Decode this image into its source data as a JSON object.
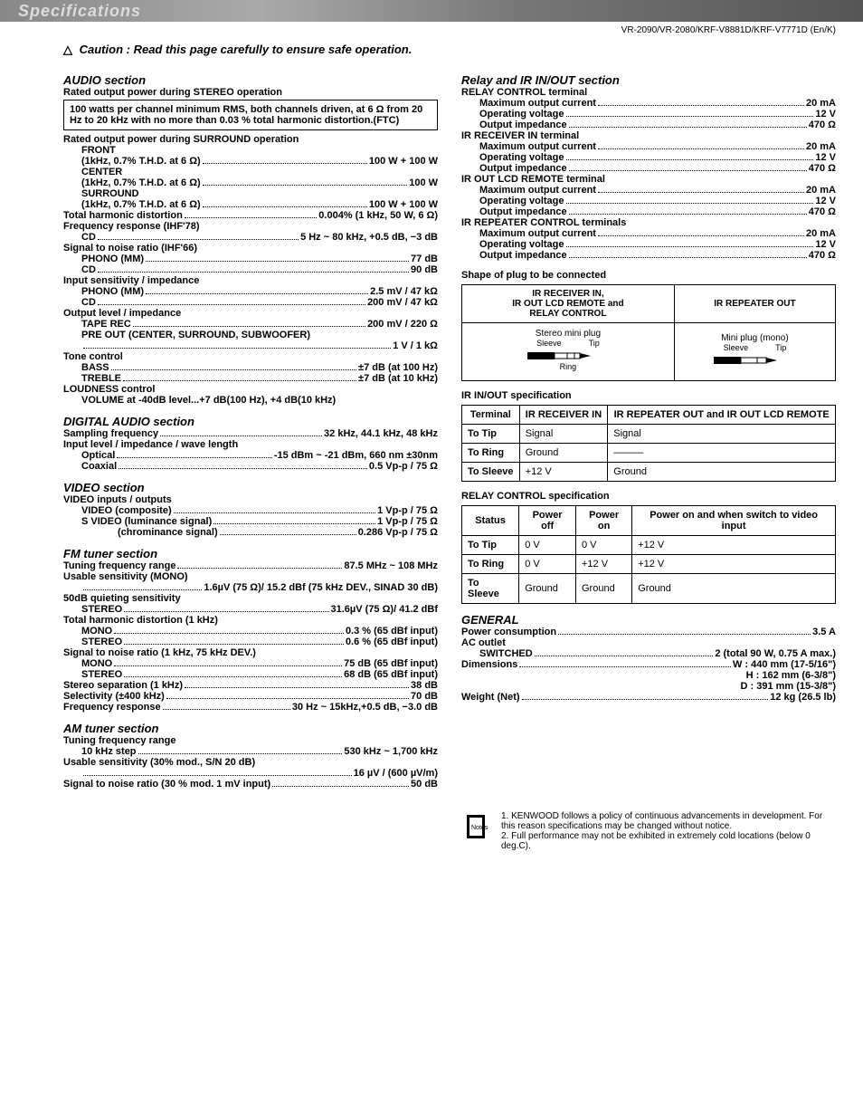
{
  "header": {
    "title": "Specifications",
    "model_line": "VR-2090/VR-2080/KRF-V8881D/KRF-V7771D (En/K)",
    "caution_prefix": "Caution :",
    "caution_text": "Read this page carefully to ensure safe operation."
  },
  "audio": {
    "title": "AUDIO section",
    "stereo_head": "Rated output power during STEREO operation",
    "stereo_box": "100 watts per channel minimum RMS, both channels driven, at 6 Ω from 20 Hz to 20 kHz with no more than 0.03 % total harmonic distortion.(FTC)",
    "surround_head": "Rated output power during SURROUND operation",
    "front": "FRONT",
    "front_spec_l": "(1kHz, 0.7% T.H.D. at 6 Ω)",
    "front_spec_r": "100 W + 100 W",
    "center": "CENTER",
    "center_spec_l": "(1kHz, 0.7% T.H.D. at 6 Ω)",
    "center_spec_r": "100 W",
    "surround": "SURROUND",
    "surround_spec_l": "(1kHz, 0.7% T.H.D. at 6 Ω)",
    "surround_spec_r": "100 W + 100 W",
    "thd_l": "Total harmonic distortion",
    "thd_r": "0.004% (1 kHz, 50 W, 6 Ω)",
    "freq_head": "Frequency response (IHF'78)",
    "freq_cd_l": "CD",
    "freq_cd_r": "5 Hz ~ 80 kHz, +0.5 dB, −3 dB",
    "sn_head": "Signal to noise ratio (IHF'66)",
    "sn_phono_l": "PHONO (MM)",
    "sn_phono_r": "77 dB",
    "sn_cd_l": "CD",
    "sn_cd_r": "90 dB",
    "sens_head": "Input sensitivity / impedance",
    "sens_phono_l": "PHONO (MM)",
    "sens_phono_r": "2.5 mV / 47 kΩ",
    "sens_cd_l": "CD",
    "sens_cd_r": "200 mV / 47 kΩ",
    "out_head": "Output level / impedance",
    "out_tape_l": "TAPE REC",
    "out_tape_r": "200 mV / 220 Ω",
    "out_pre": "PRE OUT (CENTER, SURROUND, SUBWOOFER)",
    "out_pre_r": "1 V / 1 kΩ",
    "tone_head": "Tone control",
    "bass_l": "BASS",
    "bass_r": "±7 dB (at 100 Hz)",
    "treble_l": "TREBLE",
    "treble_r": "±7 dB (at 10 kHz)",
    "loud_head": "LOUDNESS control",
    "loud_l": "VOLUME at -40dB level",
    "loud_r": "+7 dB(100 Hz), +4 dB(10 kHz)"
  },
  "digital": {
    "title": "DIGITAL AUDIO section",
    "samp_l": "Sampling frequency",
    "samp_r": "32 kHz, 44.1 kHz, 48 kHz",
    "in_head": "Input level / impedance / wave length",
    "opt_l": "Optical",
    "opt_r": "-15 dBm ~ -21 dBm, 660 nm ±30nm",
    "coax_l": "Coaxial",
    "coax_r": "0.5 Vp-p / 75 Ω"
  },
  "video": {
    "title": "VIDEO section",
    "io_head": "VIDEO inputs / outputs",
    "comp_l": "VIDEO    (composite)",
    "comp_r": "1 Vp-p / 75 Ω",
    "svlum_l": "S VIDEO (luminance signal)",
    "svlum_r": "1 Vp-p / 75 Ω",
    "svchr_l": "(chrominance signal)",
    "svchr_r": "0.286 Vp-p / 75 Ω"
  },
  "fm": {
    "title": "FM tuner section",
    "tune_l": "Tuning frequency range",
    "tune_r": "87.5 MHz ~ 108 MHz",
    "usens_head": "Usable sensitivity  (MONO)",
    "usens_r": "1.6µV (75 Ω)/ 15.2 dBf (75 kHz DEV., SINAD 30 dB)",
    "quiet_head": "50dB quieting sensitivity",
    "quiet_l": "STEREO",
    "quiet_r": "31.6µV (75 Ω)/ 41.2 dBf",
    "thd_head": "Total harmonic distortion (1 kHz)",
    "thd_m_l": "MONO",
    "thd_m_r": "0.3 % (65 dBf input)",
    "thd_s_l": "STEREO",
    "thd_s_r": "0.6 % (65 dBf input)",
    "sn_head": "Signal to noise ratio (1 kHz, 75 kHz DEV.)",
    "sn_m_l": "MONO",
    "sn_m_r": "75 dB (65 dBf input)",
    "sn_s_l": "STEREO",
    "sn_s_r": "68 dB (65 dBf input)",
    "sep_l": "Stereo separation (1 kHz)",
    "sep_r": "38 dB",
    "sel_l": "Selectivity (±400 kHz)",
    "sel_r": "70 dB",
    "fr_l": "Frequency response",
    "fr_r": "30 Hz ~ 15kHz,+0.5 dB,  −3.0 dB"
  },
  "am": {
    "title": "AM tuner section",
    "tune_head": "Tuning frequency range",
    "step_l": "10 kHz step",
    "step_r": "530 kHz ~ 1,700 kHz",
    "usens_head": "Usable sensitivity (30% mod., S/N 20 dB)",
    "usens_r": "16 µV / (600 µV/m)",
    "sn_l": "Signal to noise ratio (30 % mod. 1 mV input)",
    "sn_r": "50 dB"
  },
  "relay": {
    "title": "Relay and IR IN/OUT section",
    "groups": [
      {
        "head": "RELAY CONTROL terminal",
        "rows": [
          [
            "Maximum output current",
            "20 mA"
          ],
          [
            "Operating voltage",
            "12 V"
          ],
          [
            "Output impedance",
            "470 Ω"
          ]
        ]
      },
      {
        "head": "IR RECEIVER IN terminal",
        "rows": [
          [
            "Maximum output current",
            "20 mA"
          ],
          [
            "Operating voltage",
            "12 V"
          ],
          [
            "Output impedance",
            "470 Ω"
          ]
        ]
      },
      {
        "head": "IR OUT LCD REMOTE terminal",
        "rows": [
          [
            "Maximum output current",
            "20 mA"
          ],
          [
            "Operating voltage",
            "12 V"
          ],
          [
            "Output impedance",
            "470 Ω"
          ]
        ]
      },
      {
        "head": "IR REPEATER CONTROL terminals",
        "rows": [
          [
            "Maximum output current",
            "20 mA"
          ],
          [
            "Operating voltage",
            "12 V"
          ],
          [
            "Output impedance",
            "470 Ω"
          ]
        ]
      }
    ]
  },
  "plug": {
    "head": "Shape of plug to be connected",
    "col1": "IR RECEIVER IN,\nIR OUT LCD REMOTE and\nRELAY CONTROL",
    "col2": "IR REPEATER OUT",
    "c1": "Stereo mini plug",
    "c2": "Mini plug (mono)",
    "sleeve": "Sleeve",
    "tip": "Tip",
    "ring": "Ring"
  },
  "irspec": {
    "head": "IR IN/OUT specification",
    "cols": [
      "Terminal",
      "IR RECEIVER IN",
      "IR REPEATER OUT and IR OUT LCD REMOTE"
    ],
    "rows": [
      [
        "To Tip",
        "Signal",
        "Signal"
      ],
      [
        "To Ring",
        "Ground",
        "———"
      ],
      [
        "To Sleeve",
        "+12 V",
        "Ground"
      ]
    ]
  },
  "relayspec": {
    "head": "RELAY CONTROL specification",
    "cols": [
      "Status",
      "Power off",
      "Power on",
      "Power on and when switch to video input"
    ],
    "rows": [
      [
        "To Tip",
        "0 V",
        "0 V",
        "+12 V"
      ],
      [
        "To Ring",
        "0 V",
        "+12 V",
        "+12 V"
      ],
      [
        "To Sleeve",
        "Ground",
        "Ground",
        "Ground"
      ]
    ]
  },
  "general": {
    "title": "GENERAL",
    "power_l": "Power consumption",
    "power_r": "3.5 A",
    "ac_head": "AC outlet",
    "sw_l": "SWITCHED",
    "sw_r": "2 (total 90 W, 0.75 A max.)",
    "dim_l": "Dimensions",
    "dim_w": "W : 440 mm (17-5/16\")",
    "dim_h": "H : 162 mm (6-3/8\")",
    "dim_d": "D : 391 mm (15-3/8\")",
    "wt_l": "Weight (Net)",
    "wt_r": "12 kg (26.5 lb)"
  },
  "notes": {
    "n1": "1. KENWOOD follows a policy of continuous advancements in development. For this reason specifications may be changed without notice.",
    "n2": "2. Full performance may not be exhibited in extremely cold locations (below 0 deg.C)."
  }
}
